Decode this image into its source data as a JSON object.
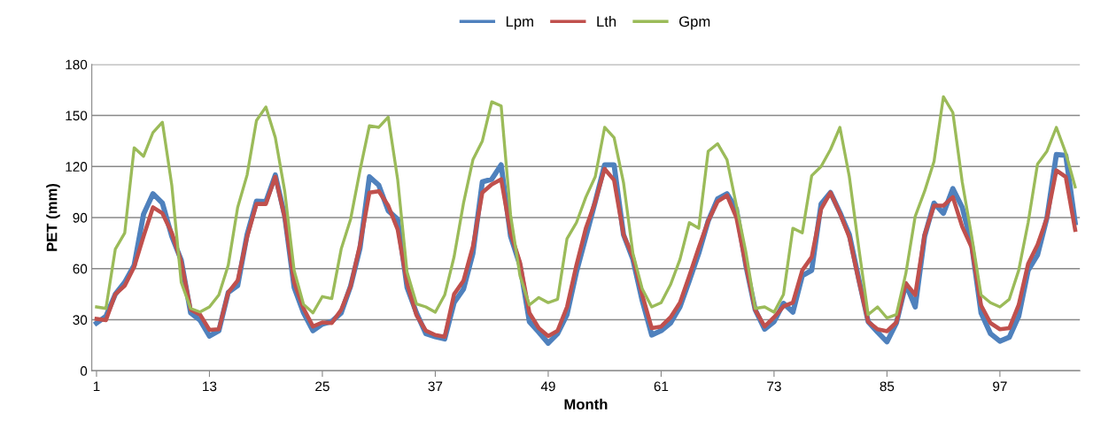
{
  "chart_data": {
    "type": "line",
    "xlabel": "Month",
    "ylabel": "PET (mm)",
    "x": [
      1,
      2,
      3,
      4,
      5,
      6,
      7,
      8,
      9,
      10,
      11,
      12,
      13,
      14,
      15,
      16,
      17,
      18,
      19,
      20,
      21,
      22,
      23,
      24,
      25,
      26,
      27,
      28,
      29,
      30,
      31,
      32,
      33,
      34,
      35,
      36,
      37,
      38,
      39,
      40,
      41,
      42,
      43,
      44,
      45,
      46,
      47,
      48,
      49,
      50,
      51,
      52,
      53,
      54,
      55,
      56,
      57,
      58,
      59,
      60,
      61,
      62,
      63,
      64,
      65,
      66,
      67,
      68,
      69,
      70,
      71,
      72,
      73,
      74,
      75,
      76,
      77,
      78,
      79,
      80,
      81,
      82,
      83,
      84,
      85,
      86,
      87,
      88,
      89,
      90,
      91,
      92,
      93,
      94,
      95,
      96,
      97,
      98,
      99,
      100,
      101,
      102,
      103,
      104,
      105
    ],
    "xlim": [
      0.5,
      105.5
    ],
    "xticks": [
      1,
      13,
      25,
      37,
      49,
      61,
      73,
      85,
      97
    ],
    "ylim": [
      0,
      180
    ],
    "yticks": [
      0,
      30,
      60,
      90,
      120,
      150,
      180
    ],
    "grid": "y",
    "legend": "top",
    "marker": "none",
    "line_style": "solid",
    "series": [
      {
        "name": "Lpm",
        "color": "#4f81bd",
        "values": [
          28,
          32,
          45,
          52,
          62,
          92,
          104,
          98.5,
          79,
          65,
          34,
          29.7,
          20.4,
          23.5,
          46,
          50,
          80,
          99.6,
          99.4,
          115,
          91,
          49,
          34,
          23.5,
          27.4,
          29,
          34,
          49.7,
          72,
          114,
          109,
          94,
          89,
          49,
          34,
          21.8,
          20,
          18.7,
          40,
          48,
          69,
          111,
          112.5,
          121,
          79,
          62,
          28.8,
          22.7,
          16.2,
          21.8,
          33,
          58,
          78.5,
          99.4,
          121,
          121,
          80,
          65.4,
          41,
          21,
          23.5,
          28,
          37.5,
          53,
          69,
          88,
          101,
          104,
          95,
          62,
          35.8,
          24.4,
          28.8,
          39.6,
          34.4,
          55.8,
          59,
          98,
          104.7,
          93,
          80,
          54,
          28.8,
          22.7,
          17,
          28,
          51,
          37.5,
          79,
          98.5,
          92.5,
          107,
          96,
          74,
          34,
          21.8,
          17.4,
          19.7,
          32,
          59,
          68,
          89.8,
          127,
          126.6,
          87
        ]
      },
      {
        "name": "Lth",
        "color": "#c0504d",
        "values": [
          30.5,
          29.7,
          45,
          50,
          61,
          79,
          96,
          92.5,
          81,
          64,
          36,
          33,
          24,
          24.4,
          46,
          53,
          78.5,
          98,
          98,
          114,
          90,
          52,
          36.6,
          26,
          28.4,
          28,
          35.8,
          49.7,
          74,
          104.7,
          105.5,
          97,
          83,
          51.5,
          32.7,
          23.5,
          21,
          20,
          45,
          53,
          73,
          104.7,
          109.5,
          112.5,
          81,
          63.7,
          34,
          25,
          20.4,
          23.5,
          37.5,
          62,
          83.7,
          99.4,
          118.6,
          112,
          80,
          67,
          44.5,
          25,
          26,
          31.4,
          40,
          55.8,
          72.4,
          88,
          99.4,
          103,
          90,
          62,
          35.8,
          26,
          31.4,
          37.8,
          40,
          59,
          66.8,
          95,
          104.7,
          92.5,
          78.5,
          53,
          28.8,
          24.4,
          23.2,
          28.4,
          51.5,
          44.5,
          80,
          97,
          97,
          102,
          84.6,
          72.4,
          38.4,
          28,
          24.4,
          25,
          38.7,
          62.8,
          74,
          89.8,
          117.7,
          113.9,
          82.8
        ]
      },
      {
        "name": "Gpm",
        "color": "#9bbb59",
        "values": [
          37.5,
          36.6,
          71.5,
          81,
          131,
          126,
          140,
          146,
          109,
          52,
          36.6,
          34.5,
          37.5,
          44.5,
          62,
          96,
          115,
          147,
          155,
          137,
          105.5,
          59,
          39,
          34,
          43.6,
          42.4,
          71.5,
          89,
          117.7,
          144,
          143,
          149,
          112.5,
          58,
          39.3,
          37.5,
          34.4,
          44.5,
          67,
          98.5,
          124,
          135,
          158,
          155.6,
          91.6,
          55.8,
          38.7,
          43,
          40,
          42,
          77.6,
          87,
          102,
          114,
          143,
          137,
          110.6,
          69,
          48,
          37.5,
          40,
          50.6,
          65.4,
          87,
          83.7,
          129,
          133.4,
          124,
          97,
          70,
          36.6,
          37.5,
          34.4,
          44.8,
          83.7,
          81,
          114.6,
          120,
          130,
          143,
          114,
          72.4,
          33,
          37.5,
          31,
          33,
          57,
          90.7,
          105.5,
          123,
          161,
          151.7,
          110.8,
          79,
          44.5,
          40,
          37.5,
          42,
          59,
          87,
          121.4,
          129,
          143,
          128,
          108
        ]
      }
    ]
  }
}
